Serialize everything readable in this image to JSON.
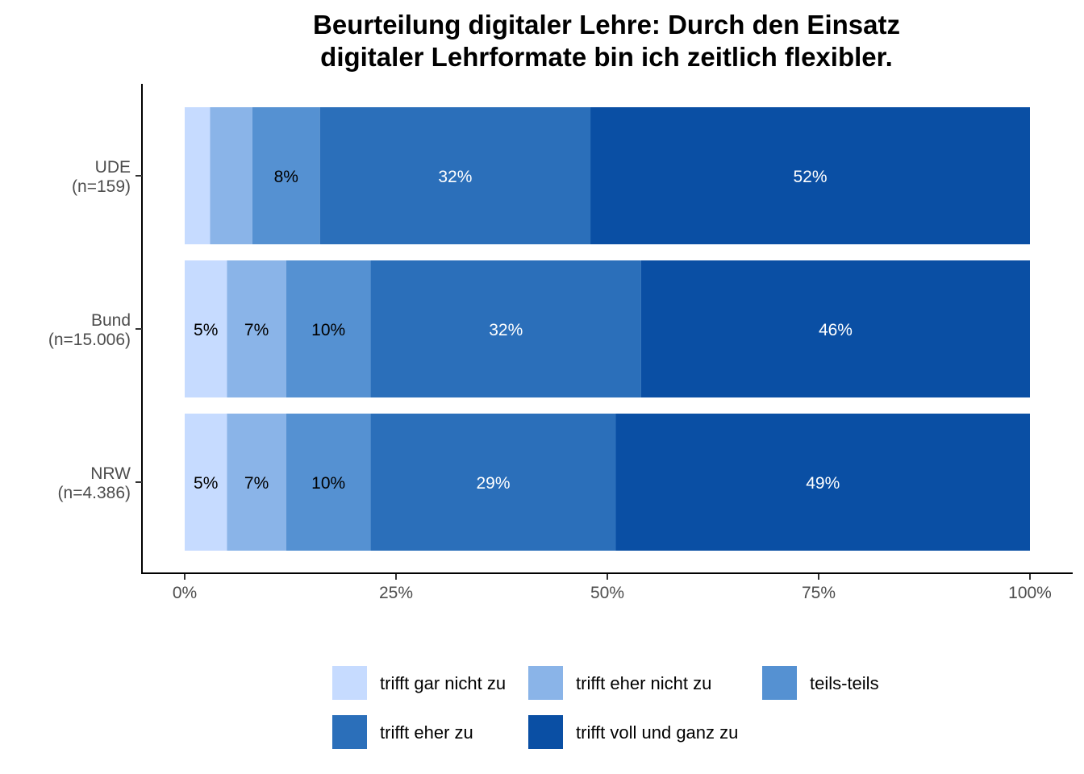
{
  "chart_data": {
    "type": "bar",
    "orientation": "horizontal",
    "stacked": true,
    "title_lines": [
      "Beurteilung digitaler Lehre: Durch den Einsatz",
      "digitaler Lehrformate bin ich zeitlich flexibler."
    ],
    "categories": [
      {
        "name": "UDE",
        "n": "(n=159)"
      },
      {
        "name": "Bund",
        "n": "(n=15.006)"
      },
      {
        "name": "NRW",
        "n": "(n=4.386)"
      }
    ],
    "series": [
      {
        "name": "trifft gar nicht zu",
        "color": "#c6dbff",
        "label_color": "#000000",
        "values": [
          3,
          5,
          5
        ],
        "labels": [
          "",
          "5%",
          "5%"
        ]
      },
      {
        "name": "trifft eher nicht zu",
        "color": "#8ab4e8",
        "label_color": "#000000",
        "values": [
          5,
          7,
          7
        ],
        "labels": [
          "",
          "7%",
          "7%"
        ]
      },
      {
        "name": "teils-teils",
        "color": "#5591d2",
        "label_color": "#000000",
        "values": [
          8,
          10,
          10
        ],
        "labels": [
          "8%",
          "10%",
          "10%"
        ]
      },
      {
        "name": "trifft eher zu",
        "color": "#2b6fba",
        "label_color": "#ffffff",
        "values": [
          32,
          32,
          29
        ],
        "labels": [
          "32%",
          "32%",
          "29%"
        ]
      },
      {
        "name": "trifft voll und ganz zu",
        "color": "#0a4fa4",
        "label_color": "#ffffff",
        "values": [
          52,
          46,
          49
        ],
        "labels": [
          "52%",
          "46%",
          "49%"
        ]
      }
    ],
    "xlim": [
      0,
      100
    ],
    "xticks": [
      {
        "value": 0,
        "label": "0%"
      },
      {
        "value": 25,
        "label": "25%"
      },
      {
        "value": 50,
        "label": "50%"
      },
      {
        "value": 75,
        "label": "75%"
      },
      {
        "value": 100,
        "label": "100%"
      }
    ],
    "xlabel": "",
    "ylabel": "",
    "grid": false,
    "legend_position": "bottom"
  }
}
